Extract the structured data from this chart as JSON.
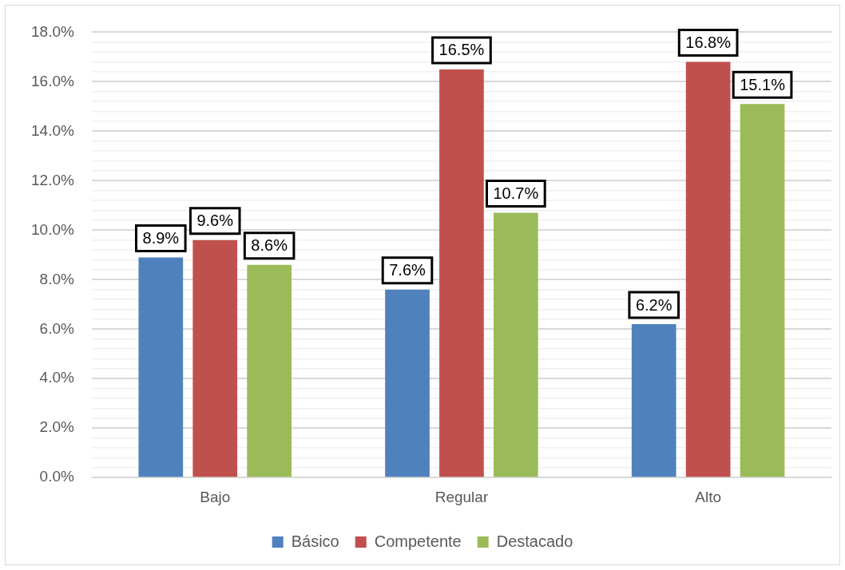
{
  "chart_data": {
    "type": "bar",
    "categories": [
      "Bajo",
      "Regular",
      "Alto"
    ],
    "series": [
      {
        "name": "Básico",
        "color": "#4f81bd",
        "values": [
          8.9,
          7.6,
          6.2
        ],
        "value_labels": [
          "8.9%",
          "7.6%",
          "6.2%"
        ]
      },
      {
        "name": "Competente",
        "color": "#c0504d",
        "values": [
          9.6,
          16.5,
          16.8
        ],
        "value_labels": [
          "9.6%",
          "16.5%",
          "16.8%"
        ]
      },
      {
        "name": "Destacado",
        "color": "#9bbb59",
        "values": [
          8.6,
          10.7,
          15.1
        ],
        "value_labels": [
          "8.6%",
          "10.7%",
          "15.1%"
        ]
      }
    ],
    "ylim": [
      0,
      18
    ],
    "yticks": [
      {
        "value": 0,
        "label": "0.0%"
      },
      {
        "value": 0.4,
        "label": null
      },
      {
        "value": 0.8,
        "label": null
      },
      {
        "value": 1.2,
        "label": null
      },
      {
        "value": 1.6,
        "label": null
      },
      {
        "value": 2,
        "label": "2.0%"
      },
      {
        "value": 2.4,
        "label": null
      },
      {
        "value": 2.8,
        "label": null
      },
      {
        "value": 3.2,
        "label": null
      },
      {
        "value": 3.6,
        "label": null
      },
      {
        "value": 4,
        "label": "4.0%"
      },
      {
        "value": 4.4,
        "label": null
      },
      {
        "value": 4.8,
        "label": null
      },
      {
        "value": 5.2,
        "label": null
      },
      {
        "value": 5.6,
        "label": null
      },
      {
        "value": 6,
        "label": "6.0%"
      },
      {
        "value": 6.4,
        "label": null
      },
      {
        "value": 6.8,
        "label": null
      },
      {
        "value": 7.2,
        "label": null
      },
      {
        "value": 7.6,
        "label": null
      },
      {
        "value": 8,
        "label": "8.0%"
      },
      {
        "value": 8.4,
        "label": null
      },
      {
        "value": 8.8,
        "label": null
      },
      {
        "value": 9.2,
        "label": null
      },
      {
        "value": 9.6,
        "label": null
      },
      {
        "value": 10,
        "label": "10.0%"
      },
      {
        "value": 10.4,
        "label": null
      },
      {
        "value": 10.8,
        "label": null
      },
      {
        "value": 11.2,
        "label": null
      },
      {
        "value": 11.6,
        "label": null
      },
      {
        "value": 12,
        "label": "12.0%"
      },
      {
        "value": 12.4,
        "label": null
      },
      {
        "value": 12.8,
        "label": null
      },
      {
        "value": 13.2,
        "label": null
      },
      {
        "value": 13.6,
        "label": null
      },
      {
        "value": 14,
        "label": "14.0%"
      },
      {
        "value": 14.4,
        "label": null
      },
      {
        "value": 14.8,
        "label": null
      },
      {
        "value": 15.2,
        "label": null
      },
      {
        "value": 15.6,
        "label": null
      },
      {
        "value": 16,
        "label": "16.0%"
      },
      {
        "value": 16.4,
        "label": null
      },
      {
        "value": 16.8,
        "label": null
      },
      {
        "value": 17.2,
        "label": null
      },
      {
        "value": 17.6,
        "label": null
      },
      {
        "value": 18,
        "label": "18.0%"
      }
    ],
    "grid": "y",
    "legend": "bottom"
  }
}
